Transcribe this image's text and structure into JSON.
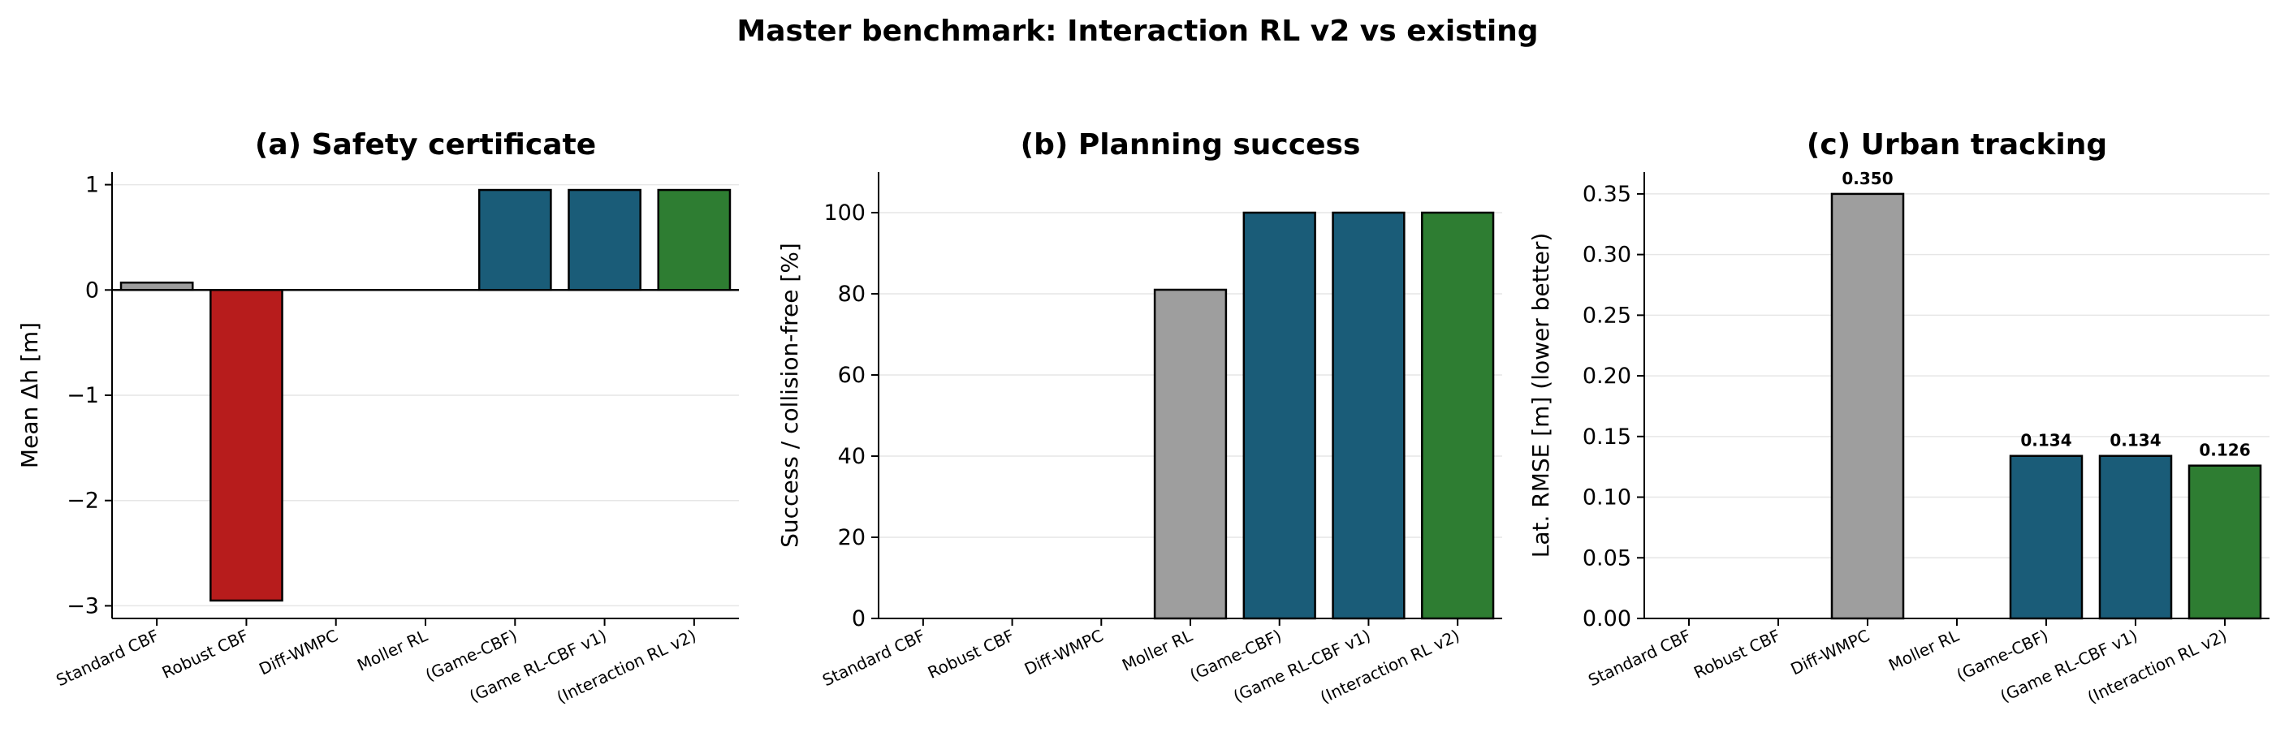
{
  "figure_title": "Master benchmark: Interaction RL v2 vs existing",
  "colors": {
    "baseline": "#9e9e9e",
    "robust": "#b71c1c",
    "game": "#1a5c78",
    "interaction": "#2e7d32",
    "grid": "#e6e6e6",
    "axis": "#000000"
  },
  "chart_data": [
    {
      "type": "bar",
      "title": "(a) Safety certificate",
      "ylabel": "Mean Δh [m]",
      "categories": [
        "Standard CBF",
        "Robust CBF",
        "Diff-WMPC",
        "Moller RL",
        "(Game-CBF)",
        "(Game RL-CBF v1)",
        "(Interaction RL v2)"
      ],
      "values": [
        0.07,
        -2.95,
        0,
        0,
        0.95,
        0.95,
        0.95
      ],
      "bar_colors": [
        "baseline",
        "robust",
        "baseline",
        "baseline",
        "game",
        "game",
        "interaction"
      ],
      "ylim": [
        -3.12,
        1.12
      ],
      "yticks": [
        1,
        0,
        -1,
        -2,
        -3
      ],
      "ytick_labels": [
        "1",
        "0",
        "−1",
        "−2",
        "−3"
      ],
      "zero_line": true,
      "data_labels": [],
      "grid": "horizontal"
    },
    {
      "type": "bar",
      "title": "(b) Planning success",
      "ylabel": "Success / collision-free [%]",
      "categories": [
        "Standard CBF",
        "Robust CBF",
        "Diff-WMPC",
        "Moller RL",
        "(Game-CBF)",
        "(Game RL-CBF v1)",
        "(Interaction RL v2)"
      ],
      "values": [
        0,
        0,
        0,
        81,
        100,
        100,
        100
      ],
      "bar_colors": [
        "baseline",
        "baseline",
        "baseline",
        "baseline",
        "game",
        "game",
        "interaction"
      ],
      "ylim": [
        0,
        110
      ],
      "yticks": [
        0,
        20,
        40,
        60,
        80,
        100
      ],
      "ytick_labels": [
        "0",
        "20",
        "40",
        "60",
        "80",
        "100"
      ],
      "zero_line": false,
      "data_labels": [],
      "grid": "horizontal"
    },
    {
      "type": "bar",
      "title": "(c) Urban tracking",
      "ylabel": "Lat. RMSE [m] (lower better)",
      "categories": [
        "Standard CBF",
        "Robust CBF",
        "Diff-WMPC",
        "Moller RL",
        "(Game-CBF)",
        "(Game RL-CBF v1)",
        "(Interaction RL v2)"
      ],
      "values": [
        0,
        0,
        0.35,
        0,
        0.134,
        0.134,
        0.126
      ],
      "bar_colors": [
        "baseline",
        "baseline",
        "baseline",
        "baseline",
        "game",
        "game",
        "interaction"
      ],
      "ylim": [
        0,
        0.368
      ],
      "yticks": [
        0,
        0.05,
        0.1,
        0.15,
        0.2,
        0.25,
        0.3,
        0.35
      ],
      "ytick_labels": [
        "0.00",
        "0.05",
        "0.10",
        "0.15",
        "0.20",
        "0.25",
        "0.30",
        "0.35"
      ],
      "zero_line": false,
      "data_labels": [
        "",
        "",
        "0.350",
        "",
        "0.134",
        "0.134",
        "0.126"
      ],
      "grid": "horizontal"
    }
  ]
}
